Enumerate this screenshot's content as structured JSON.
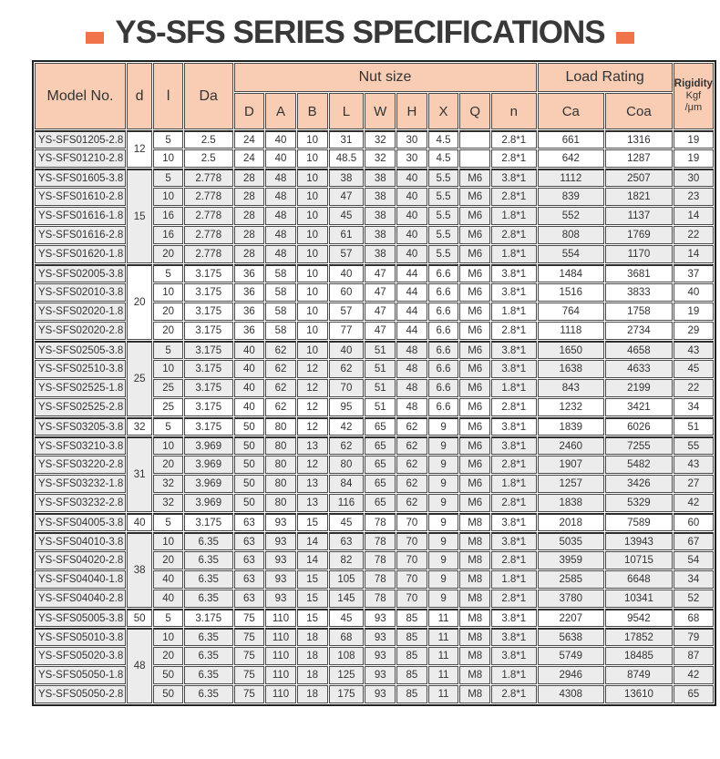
{
  "title": {
    "text": "YS-SFS SERIES SPECIFICATIONS",
    "accent_color": "#f0734a"
  },
  "colors": {
    "header_bg": "#f8cdb4",
    "row_shade": "#ececec",
    "row_plain": "#ffffff",
    "border": "#4a4a4a",
    "text": "#333333"
  },
  "table": {
    "header": {
      "model": "Model No.",
      "d": "d",
      "l": "l",
      "da": "Da",
      "nut_size": "Nut size",
      "nut_cols": [
        "D",
        "A",
        "B",
        "L",
        "W",
        "H",
        "X",
        "Q",
        "n"
      ],
      "load_rating": "Load Rating",
      "load_cols": [
        "Ca",
        "Coa"
      ],
      "rigidity": "Rigidity",
      "rigidity_unit_1": "Kgf",
      "rigidity_unit_2": "/μm"
    },
    "d_groups": [
      {
        "d": "12",
        "span": 2,
        "shade": false
      },
      {
        "d": "15",
        "span": 5,
        "shade": true
      },
      {
        "d": "20",
        "span": 4,
        "shade": false
      },
      {
        "d": "25",
        "span": 4,
        "shade": true
      },
      {
        "d": "32",
        "span": 1,
        "shade": false
      },
      {
        "d": "31",
        "span": 4,
        "shade": true
      },
      {
        "d": "40",
        "span": 1,
        "shade": false
      },
      {
        "d": "38",
        "span": 4,
        "shade": true
      },
      {
        "d": "50",
        "span": 1,
        "shade": false
      },
      {
        "d": "48",
        "span": 4,
        "shade": true
      }
    ],
    "rows": [
      {
        "model": "YS-SFS01205-2.8",
        "l": "5",
        "da": "2.5",
        "nut": [
          "24",
          "40",
          "10",
          "31",
          "32",
          "30",
          "4.5",
          "",
          "2.8*1"
        ],
        "ca": "661",
        "coa": "1316",
        "rigidity": "19",
        "shade": false
      },
      {
        "model": "YS-SFS01210-2.8",
        "l": "10",
        "da": "2.5",
        "nut": [
          "24",
          "40",
          "10",
          "48.5",
          "32",
          "30",
          "4.5",
          "",
          "2.8*1"
        ],
        "ca": "642",
        "coa": "1287",
        "rigidity": "19",
        "shade": false
      },
      {
        "model": "YS-SFS01605-3.8",
        "l": "5",
        "da": "2.778",
        "nut": [
          "28",
          "48",
          "10",
          "38",
          "38",
          "40",
          "5.5",
          "M6",
          "3.8*1"
        ],
        "ca": "1112",
        "coa": "2507",
        "rigidity": "30",
        "shade": true
      },
      {
        "model": "YS-SFS01610-2.8",
        "l": "10",
        "da": "2.778",
        "nut": [
          "28",
          "48",
          "10",
          "47",
          "38",
          "40",
          "5.5",
          "M6",
          "2.8*1"
        ],
        "ca": "839",
        "coa": "1821",
        "rigidity": "23",
        "shade": true
      },
      {
        "model": "YS-SFS01616-1.8",
        "l": "16",
        "da": "2.778",
        "nut": [
          "28",
          "48",
          "10",
          "45",
          "38",
          "40",
          "5.5",
          "M6",
          "1.8*1"
        ],
        "ca": "552",
        "coa": "1137",
        "rigidity": "14",
        "shade": true
      },
      {
        "model": "YS-SFS01616-2.8",
        "l": "16",
        "da": "2.778",
        "nut": [
          "28",
          "48",
          "10",
          "61",
          "38",
          "40",
          "5.5",
          "M6",
          "2.8*1"
        ],
        "ca": "808",
        "coa": "1769",
        "rigidity": "22",
        "shade": true
      },
      {
        "model": "YS-SFS01620-1.8",
        "l": "20",
        "da": "2.778",
        "nut": [
          "28",
          "48",
          "10",
          "57",
          "38",
          "40",
          "5.5",
          "M6",
          "1.8*1"
        ],
        "ca": "554",
        "coa": "1170",
        "rigidity": "14",
        "shade": true
      },
      {
        "model": "YS-SFS02005-3.8",
        "l": "5",
        "da": "3.175",
        "nut": [
          "36",
          "58",
          "10",
          "40",
          "47",
          "44",
          "6.6",
          "M6",
          "3.8*1"
        ],
        "ca": "1484",
        "coa": "3681",
        "rigidity": "37",
        "shade": false
      },
      {
        "model": "YS-SFS02010-3.8",
        "l": "10",
        "da": "3.175",
        "nut": [
          "36",
          "58",
          "10",
          "60",
          "47",
          "44",
          "6.6",
          "M6",
          "3.8*1"
        ],
        "ca": "1516",
        "coa": "3833",
        "rigidity": "40",
        "shade": false
      },
      {
        "model": "YS-SFS02020-1.8",
        "l": "20",
        "da": "3.175",
        "nut": [
          "36",
          "58",
          "10",
          "57",
          "47",
          "44",
          "6.6",
          "M6",
          "1.8*1"
        ],
        "ca": "764",
        "coa": "1758",
        "rigidity": "19",
        "shade": false
      },
      {
        "model": "YS-SFS02020-2.8",
        "l": "20",
        "da": "3.175",
        "nut": [
          "36",
          "58",
          "10",
          "77",
          "47",
          "44",
          "6.6",
          "M6",
          "2.8*1"
        ],
        "ca": "1118",
        "coa": "2734",
        "rigidity": "29",
        "shade": false
      },
      {
        "model": "YS-SFS02505-3.8",
        "l": "5",
        "da": "3.175",
        "nut": [
          "40",
          "62",
          "10",
          "40",
          "51",
          "48",
          "6.6",
          "M6",
          "3.8*1"
        ],
        "ca": "1650",
        "coa": "4658",
        "rigidity": "43",
        "shade": true
      },
      {
        "model": "YS-SFS02510-3.8",
        "l": "10",
        "da": "3.175",
        "nut": [
          "40",
          "62",
          "12",
          "62",
          "51",
          "48",
          "6.6",
          "M6",
          "3.8*1"
        ],
        "ca": "1638",
        "coa": "4633",
        "rigidity": "45",
        "shade": true
      },
      {
        "model": "YS-SFS02525-1.8",
        "l": "25",
        "da": "3.175",
        "nut": [
          "40",
          "62",
          "12",
          "70",
          "51",
          "48",
          "6.6",
          "M6",
          "1.8*1"
        ],
        "ca": "843",
        "coa": "2199",
        "rigidity": "22",
        "shade": true
      },
      {
        "model": "YS-SFS02525-2.8",
        "l": "25",
        "da": "3.175",
        "nut": [
          "40",
          "62",
          "12",
          "95",
          "51",
          "48",
          "6.6",
          "M6",
          "2.8*1"
        ],
        "ca": "1232",
        "coa": "3421",
        "rigidity": "34",
        "shade": false
      },
      {
        "model": "YS-SFS03205-3.8",
        "l": "5",
        "da": "3.175",
        "nut": [
          "50",
          "80",
          "12",
          "42",
          "65",
          "62",
          "9",
          "M6",
          "3.8*1"
        ],
        "ca": "1839",
        "coa": "6026",
        "rigidity": "51",
        "shade": false
      },
      {
        "model": "YS-SFS03210-3.8",
        "l": "10",
        "da": "3.969",
        "nut": [
          "50",
          "80",
          "13",
          "62",
          "65",
          "62",
          "9",
          "M6",
          "3.8*1"
        ],
        "ca": "2460",
        "coa": "7255",
        "rigidity": "55",
        "shade": true
      },
      {
        "model": "YS-SFS03220-2.8",
        "l": "20",
        "da": "3.969",
        "nut": [
          "50",
          "80",
          "12",
          "80",
          "65",
          "62",
          "9",
          "M6",
          "2.8*1"
        ],
        "ca": "1907",
        "coa": "5482",
        "rigidity": "43",
        "shade": true
      },
      {
        "model": "YS-SFS03232-1.8",
        "l": "32",
        "da": "3.969",
        "nut": [
          "50",
          "80",
          "13",
          "84",
          "65",
          "62",
          "9",
          "M6",
          "1.8*1"
        ],
        "ca": "1257",
        "coa": "3426",
        "rigidity": "27",
        "shade": true
      },
      {
        "model": "YS-SFS03232-2.8",
        "l": "32",
        "da": "3.969",
        "nut": [
          "50",
          "80",
          "13",
          "116",
          "65",
          "62",
          "9",
          "M6",
          "2.8*1"
        ],
        "ca": "1838",
        "coa": "5329",
        "rigidity": "42",
        "shade": true
      },
      {
        "model": "YS-SFS04005-3.8",
        "l": "5",
        "da": "3.175",
        "nut": [
          "63",
          "93",
          "15",
          "45",
          "78",
          "70",
          "9",
          "M8",
          "3.8*1"
        ],
        "ca": "2018",
        "coa": "7589",
        "rigidity": "60",
        "shade": false
      },
      {
        "model": "YS-SFS04010-3.8",
        "l": "10",
        "da": "6.35",
        "nut": [
          "63",
          "93",
          "14",
          "63",
          "78",
          "70",
          "9",
          "M8",
          "3.8*1"
        ],
        "ca": "5035",
        "coa": "13943",
        "rigidity": "67",
        "shade": true
      },
      {
        "model": "YS-SFS04020-2.8",
        "l": "20",
        "da": "6.35",
        "nut": [
          "63",
          "93",
          "14",
          "82",
          "78",
          "70",
          "9",
          "M8",
          "2.8*1"
        ],
        "ca": "3959",
        "coa": "10715",
        "rigidity": "54",
        "shade": true
      },
      {
        "model": "YS-SFS04040-1.8",
        "l": "40",
        "da": "6.35",
        "nut": [
          "63",
          "93",
          "15",
          "105",
          "78",
          "70",
          "9",
          "M8",
          "1.8*1"
        ],
        "ca": "2585",
        "coa": "6648",
        "rigidity": "34",
        "shade": true
      },
      {
        "model": "YS-SFS04040-2.8",
        "l": "40",
        "da": "6.35",
        "nut": [
          "63",
          "93",
          "15",
          "145",
          "78",
          "70",
          "9",
          "M8",
          "2.8*1"
        ],
        "ca": "3780",
        "coa": "10341",
        "rigidity": "52",
        "shade": true
      },
      {
        "model": "YS-SFS05005-3.8",
        "l": "5",
        "da": "3.175",
        "nut": [
          "75",
          "110",
          "15",
          "45",
          "93",
          "85",
          "11",
          "M8",
          "3.8*1"
        ],
        "ca": "2207",
        "coa": "9542",
        "rigidity": "68",
        "shade": false
      },
      {
        "model": "YS-SFS05010-3.8",
        "l": "10",
        "da": "6.35",
        "nut": [
          "75",
          "110",
          "18",
          "68",
          "93",
          "85",
          "11",
          "M8",
          "3.8*1"
        ],
        "ca": "5638",
        "coa": "17852",
        "rigidity": "79",
        "shade": true
      },
      {
        "model": "YS-SFS05020-3.8",
        "l": "20",
        "da": "6.35",
        "nut": [
          "75",
          "110",
          "18",
          "108",
          "93",
          "85",
          "11",
          "M8",
          "3.8*1"
        ],
        "ca": "5749",
        "coa": "18485",
        "rigidity": "87",
        "shade": true
      },
      {
        "model": "YS-SFS05050-1.8",
        "l": "50",
        "da": "6.35",
        "nut": [
          "75",
          "110",
          "18",
          "125",
          "93",
          "85",
          "11",
          "M8",
          "1.8*1"
        ],
        "ca": "2946",
        "coa": "8749",
        "rigidity": "42",
        "shade": true
      },
      {
        "model": "YS-SFS05050-2.8",
        "l": "50",
        "da": "6.35",
        "nut": [
          "75",
          "110",
          "18",
          "175",
          "93",
          "85",
          "11",
          "M8",
          "2.8*1"
        ],
        "ca": "4308",
        "coa": "13610",
        "rigidity": "65",
        "shade": true
      }
    ]
  }
}
